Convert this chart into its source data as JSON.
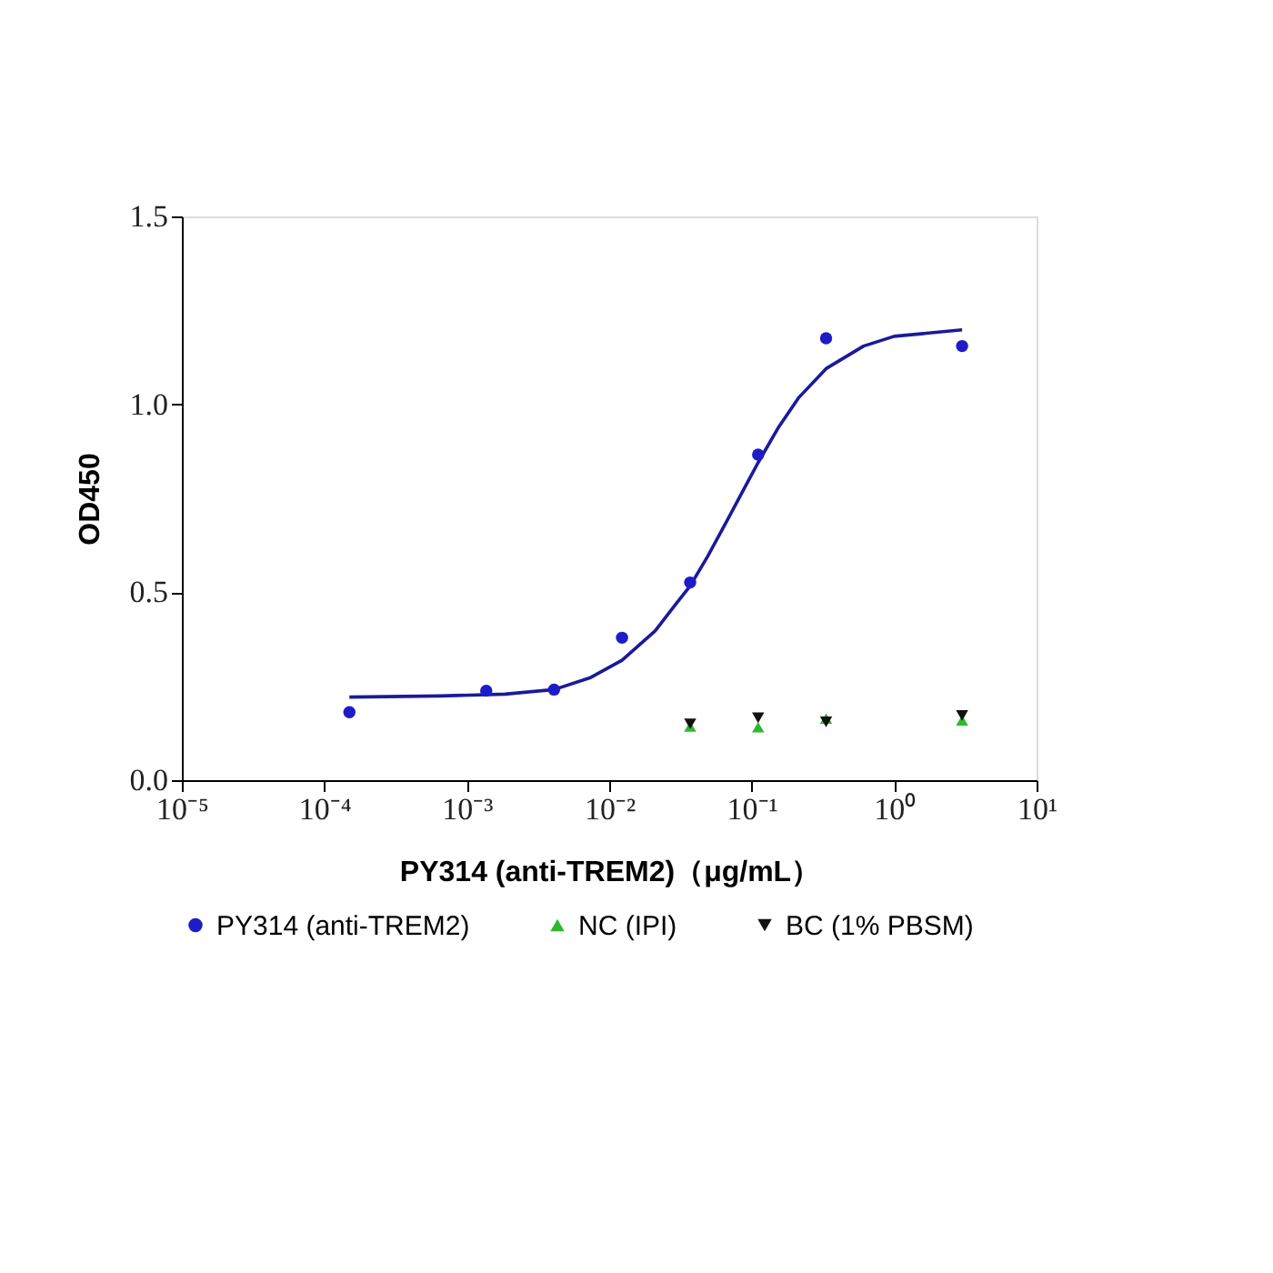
{
  "chart_data": {
    "type": "scatter",
    "xlabel": "PY314 (anti-TREM2)（μg/mL）",
    "ylabel": "OD450",
    "log": "x",
    "grid": false,
    "legend": "bottom",
    "xlim": [
      1e-05,
      10
    ],
    "xticks": [
      {
        "value": 1e-05,
        "label": "10⁻⁵"
      },
      {
        "value": 0.0001,
        "label": "10⁻⁴"
      },
      {
        "value": 0.001,
        "label": "10⁻³"
      },
      {
        "value": 0.01,
        "label": "10⁻²"
      },
      {
        "value": 0.1,
        "label": "10⁻¹"
      },
      {
        "value": 1,
        "label": "10⁰"
      },
      {
        "value": 10,
        "label": "10¹"
      }
    ],
    "ylim": [
      0,
      1.5
    ],
    "yticks": [
      {
        "value": 0,
        "label": "0.0"
      },
      {
        "value": 0.5,
        "label": "0.5"
      },
      {
        "value": 1,
        "label": "1.0"
      },
      {
        "value": 1.5,
        "label": "1.5"
      }
    ],
    "series": [
      {
        "type": "line",
        "color": "#1a1a9a",
        "marker": "none",
        "line_style": "solid",
        "x": [
          0.00015,
          0.00065,
          0.00186,
          0.0041,
          0.0073,
          0.0123,
          0.021,
          0.029,
          0.037,
          0.049,
          0.067,
          0.091,
          0.111,
          0.155,
          0.213,
          0.333,
          0.61,
          1.0,
          3.0
        ],
        "values": [
          0.221,
          0.224,
          0.229,
          0.241,
          0.272,
          0.319,
          0.397,
          0.466,
          0.517,
          0.595,
          0.69,
          0.784,
          0.845,
          0.94,
          1.017,
          1.095,
          1.155,
          1.181,
          1.198
        ]
      },
      {
        "name": "PY314 (anti-TREM2)",
        "color": "#1c1cc8",
        "marker": "circle",
        "x": [
          0.00015,
          0.00137,
          0.0041,
          0.0123,
          0.037,
          0.111,
          0.333,
          3.0
        ],
        "values": [
          0.181,
          0.238,
          0.241,
          0.379,
          0.526,
          0.866,
          1.176,
          1.155
        ]
      },
      {
        "name": "NC (IPI)",
        "color": "#2eb82e",
        "marker": "triangle-up",
        "x": [
          0.037,
          0.111,
          0.333,
          3.0
        ],
        "values": [
          0.143,
          0.141,
          0.164,
          0.159
        ]
      },
      {
        "name": "BC (1% PBSM)",
        "color": "#111111",
        "marker": "triangle-down",
        "x": [
          0.037,
          0.111,
          0.333,
          3.0
        ],
        "values": [
          0.15,
          0.166,
          0.155,
          0.172
        ]
      }
    ]
  }
}
